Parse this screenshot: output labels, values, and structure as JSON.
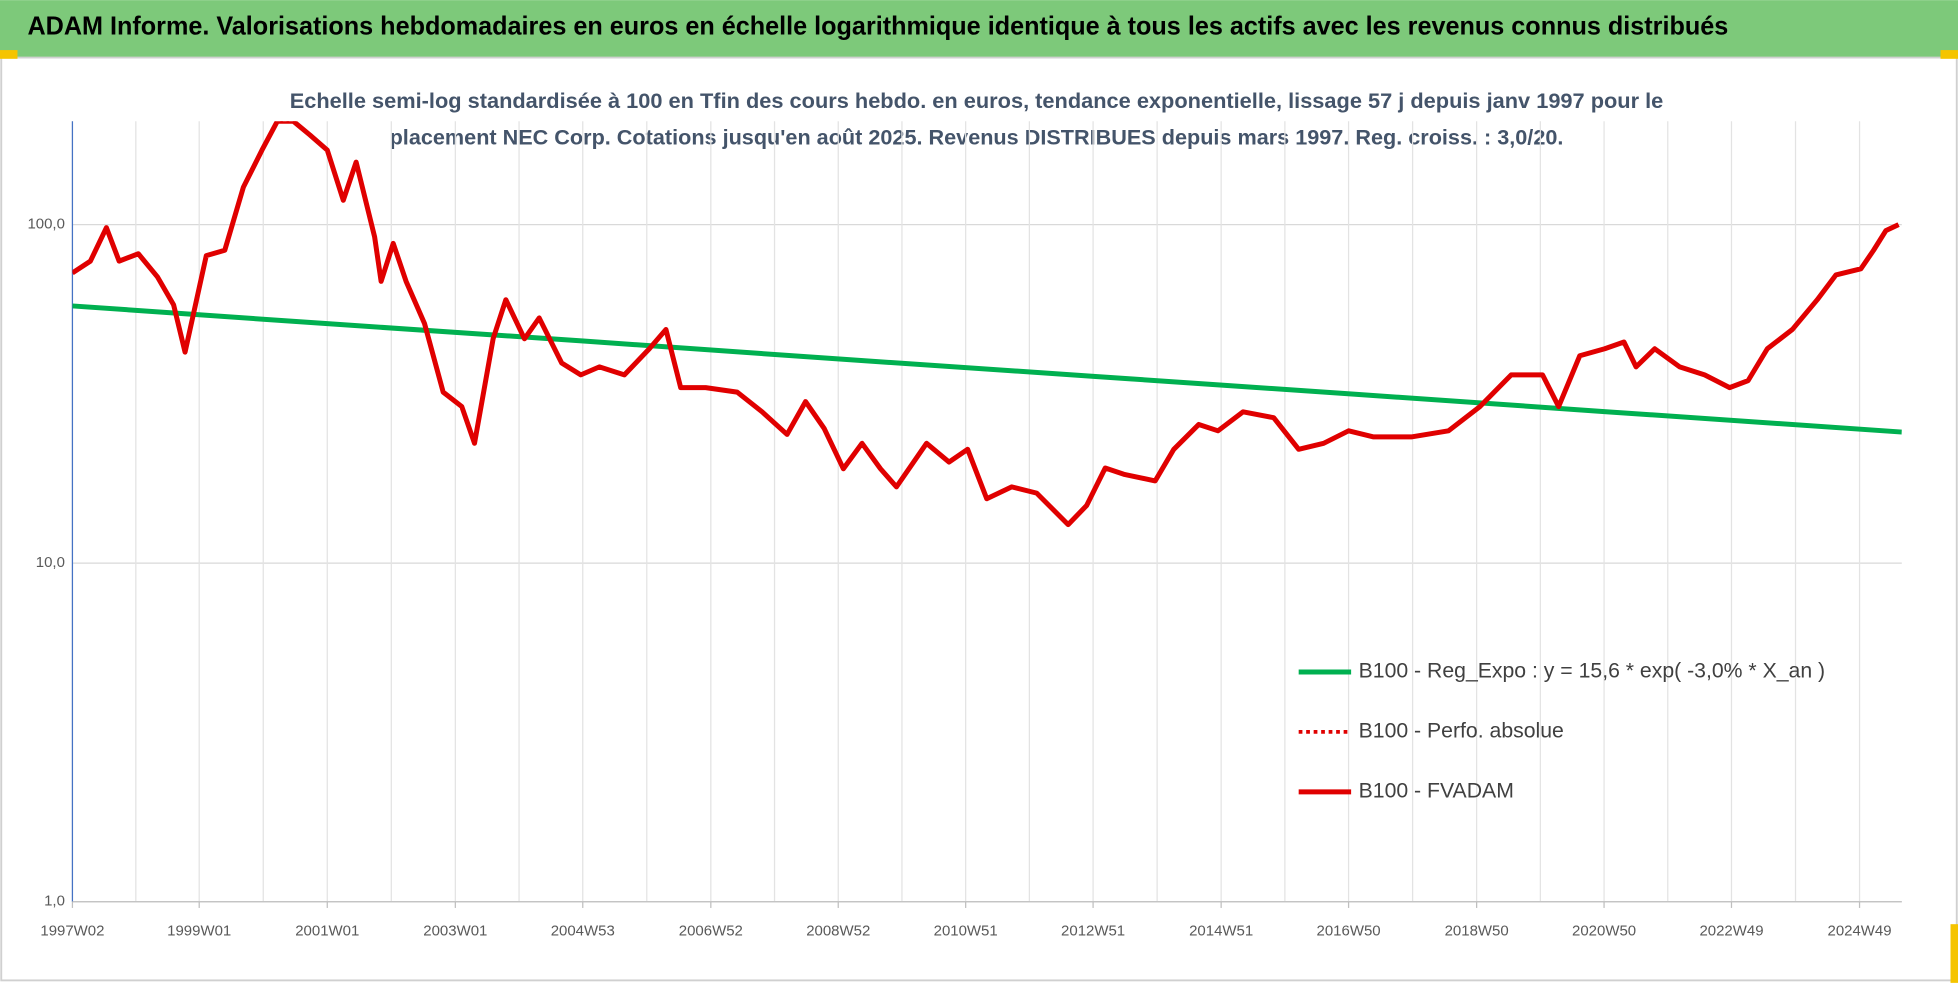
{
  "chart_data": {
    "type": "line",
    "header": "ADAM Informe. Valorisations hebdomadaires en euros en échelle logarithmique identique à tous les actifs avec les revenus connus distribués",
    "title": [
      "Echelle semi-log standardisée à 100 en Tfin des cours hebdo. en euros, tendance exponentielle, lissage 57 j depuis janv 1997 pour le",
      "placement NEC Corp. Cotations jusqu'en août 2025. Revenus DISTRIBUES depuis mars 1997. Reg. croiss. : 3,0/20."
    ],
    "log_scale": true,
    "grid": true,
    "legend_position": "right",
    "xlim": [
      1997.02,
      2025.59
    ],
    "xticks": [
      {
        "value": 1997.02,
        "label": "1997W02"
      },
      {
        "value": 1999.0,
        "label": "1999W01"
      },
      {
        "value": 2001.0,
        "label": "2001W01"
      },
      {
        "value": 2003.0,
        "label": "2003W01"
      },
      {
        "value": 2004.99,
        "label": "2004W53"
      },
      {
        "value": 2006.99,
        "label": "2006W52"
      },
      {
        "value": 2008.98,
        "label": "2008W52"
      },
      {
        "value": 2010.97,
        "label": "2010W51"
      },
      {
        "value": 2012.96,
        "label": "2012W51"
      },
      {
        "value": 2014.96,
        "label": "2014W51"
      },
      {
        "value": 2016.95,
        "label": "2016W50"
      },
      {
        "value": 2018.95,
        "label": "2018W50"
      },
      {
        "value": 2020.94,
        "label": "2020W50"
      },
      {
        "value": 2022.93,
        "label": "2022W49"
      },
      {
        "value": 2024.93,
        "label": "2024W49"
      }
    ],
    "ylim": [
      1,
      202
    ],
    "yticks": [
      {
        "value": 1,
        "label": "1,0"
      },
      {
        "value": 10,
        "label": "10,0"
      },
      {
        "value": 100,
        "label": "100,0"
      }
    ],
    "series": [
      {
        "name": "B100 - Reg_Expo : y = 15,6 * exp( -3,0% *  X_an )",
        "color": "#00b050",
        "style": "solid",
        "x": [
          1997.02,
          2001,
          2005,
          2009,
          2013,
          2017,
          2021,
          2025.59
        ],
        "values": [
          57.5,
          51.0,
          45.3,
          40.1,
          35.6,
          31.6,
          28.0,
          24.4
        ]
      },
      {
        "name": "B100 - Perfo. absolue",
        "color": "#e00000",
        "style": "dotted",
        "x": [
          1997.02,
          1997.3,
          1997.55,
          1997.75,
          1998.05,
          1998.35,
          1998.6,
          1998.78,
          1999.11,
          1999.4,
          1999.69,
          1999.98,
          2000.22,
          2000.47,
          2000.73,
          2001.0,
          2001.25,
          2001.45,
          2001.74,
          2001.84,
          2002.03,
          2002.23,
          2002.52,
          2002.81,
          2003.1,
          2003.3,
          2003.59,
          2003.79,
          2004.08,
          2004.31,
          2004.66,
          2004.96,
          2005.25,
          2005.64,
          2006.03,
          2006.29,
          2006.52,
          2006.91,
          2007.4,
          2007.79,
          2008.18,
          2008.47,
          2008.76,
          2009.06,
          2009.35,
          2009.64,
          2009.89,
          2010.36,
          2010.71,
          2011.0,
          2011.3,
          2011.69,
          2012.08,
          2012.57,
          2012.86,
          2013.15,
          2013.44,
          2013.93,
          2014.22,
          2014.61,
          2014.91,
          2015.3,
          2015.78,
          2016.17,
          2016.56,
          2016.95,
          2017.34,
          2017.93,
          2018.51,
          2019.0,
          2019.49,
          2019.98,
          2020.23,
          2020.56,
          2020.95,
          2021.25,
          2021.44,
          2021.73,
          2022.12,
          2022.51,
          2022.9,
          2023.19,
          2023.49,
          2023.88,
          2024.27,
          2024.56,
          2024.95,
          2025.15,
          2025.34,
          2025.54
        ],
        "values": [
          72,
          78,
          98,
          78,
          82,
          70,
          58,
          42,
          81,
          84,
          129,
          166,
          202,
          202,
          184,
          166,
          118,
          153,
          92,
          68,
          88,
          68,
          51,
          32,
          29,
          22.6,
          46,
          60,
          46,
          53,
          39,
          36,
          38,
          36,
          43,
          49,
          33,
          33,
          32,
          28,
          24,
          30,
          25,
          19,
          22.6,
          19,
          16.8,
          22.6,
          19.9,
          21.7,
          15.5,
          16.8,
          16.1,
          13.0,
          14.8,
          19.1,
          18.3,
          17.5,
          21.7,
          25.7,
          24.6,
          28,
          26.9,
          21.7,
          22.6,
          24.6,
          23.6,
          23.6,
          24.6,
          29,
          36,
          36,
          29,
          41,
          43,
          45,
          38,
          43,
          38,
          36,
          33,
          34.6,
          43,
          49,
          60,
          71,
          74,
          84,
          96,
          100
        ]
      },
      {
        "name": "B100 - FVADAM",
        "color": "#e00000",
        "style": "solid",
        "x": [
          1997.02,
          1997.3,
          1997.55,
          1997.75,
          1998.05,
          1998.35,
          1998.6,
          1998.78,
          1999.11,
          1999.4,
          1999.69,
          1999.98,
          2000.22,
          2000.47,
          2000.73,
          2001.0,
          2001.25,
          2001.45,
          2001.74,
          2001.84,
          2002.03,
          2002.23,
          2002.52,
          2002.81,
          2003.1,
          2003.3,
          2003.59,
          2003.79,
          2004.08,
          2004.31,
          2004.66,
          2004.96,
          2005.25,
          2005.64,
          2006.03,
          2006.29,
          2006.52,
          2006.91,
          2007.4,
          2007.79,
          2008.18,
          2008.47,
          2008.76,
          2009.06,
          2009.35,
          2009.64,
          2009.89,
          2010.36,
          2010.71,
          2011.0,
          2011.3,
          2011.69,
          2012.08,
          2012.57,
          2012.86,
          2013.15,
          2013.44,
          2013.93,
          2014.22,
          2014.61,
          2014.91,
          2015.3,
          2015.78,
          2016.17,
          2016.56,
          2016.95,
          2017.34,
          2017.93,
          2018.51,
          2019.0,
          2019.49,
          2019.98,
          2020.23,
          2020.56,
          2020.95,
          2021.25,
          2021.44,
          2021.73,
          2022.12,
          2022.51,
          2022.9,
          2023.19,
          2023.49,
          2023.88,
          2024.27,
          2024.56,
          2024.95,
          2025.15,
          2025.34,
          2025.54
        ],
        "values": [
          72,
          78,
          98,
          78,
          82,
          70,
          58,
          42,
          81,
          84,
          129,
          166,
          202,
          202,
          184,
          166,
          118,
          153,
          92,
          68,
          88,
          68,
          51,
          32,
          29,
          22.6,
          46,
          60,
          46,
          53,
          39,
          36,
          38,
          36,
          43,
          49,
          33,
          33,
          32,
          28,
          24,
          30,
          25,
          19,
          22.6,
          19,
          16.8,
          22.6,
          19.9,
          21.7,
          15.5,
          16.8,
          16.1,
          13.0,
          14.8,
          19.1,
          18.3,
          17.5,
          21.7,
          25.7,
          24.6,
          28,
          26.9,
          21.7,
          22.6,
          24.6,
          23.6,
          23.6,
          24.6,
          29,
          36,
          36,
          29,
          41,
          43,
          45,
          38,
          43,
          38,
          36,
          33,
          34.6,
          43,
          49,
          60,
          71,
          74,
          84,
          96,
          100
        ]
      }
    ]
  }
}
